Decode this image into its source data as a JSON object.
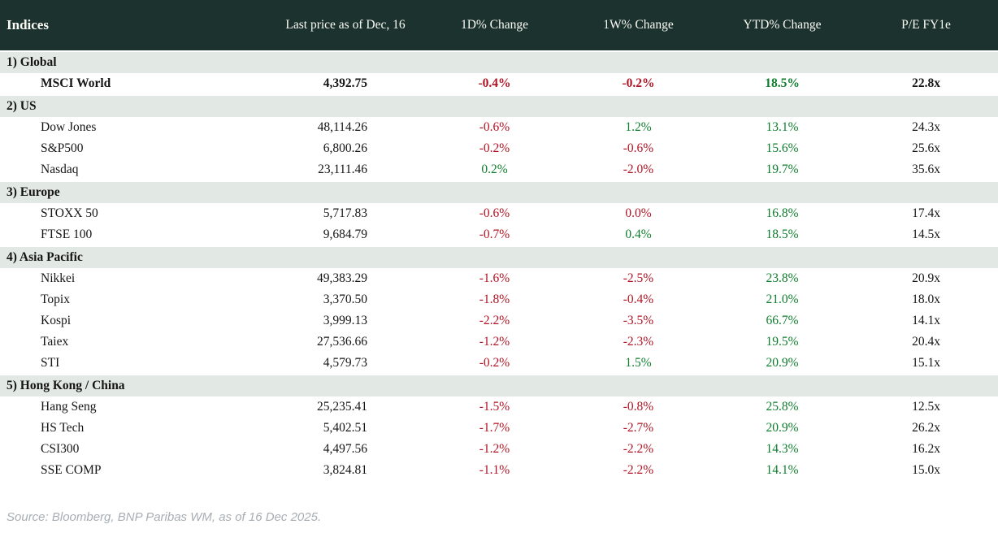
{
  "theme": {
    "header_bg": "#1b322e",
    "header_text": "#fbfaf4",
    "section_bg": "#e2e8e4",
    "row_bg": "#ffffff",
    "text_color": "#151515",
    "negative_color": "#b01323",
    "positive_color": "#0e7d2d",
    "footer_text": "#a7aeb3"
  },
  "table": {
    "title": "Indices",
    "col_headers": [
      "Last price as of Dec, 16",
      "1D% Change",
      "1W% Change",
      "YTD% Change",
      "P/E FY1e"
    ],
    "sections": [
      {
        "label": "1) Global",
        "rows": [
          {
            "name": "MSCI World",
            "price": "4,392.75",
            "d1": "-0.4%",
            "d1s": "neg",
            "w1": "-0.2%",
            "w1s": "neg",
            "ytd": "18.5%",
            "ytds": "pos",
            "pe": "22.8x",
            "bold": true
          }
        ]
      },
      {
        "label": "2) US",
        "rows": [
          {
            "name": "Dow Jones",
            "price": "48,114.26",
            "d1": "-0.6%",
            "d1s": "neg",
            "w1": "1.2%",
            "w1s": "pos",
            "ytd": "13.1%",
            "ytds": "pos",
            "pe": "24.3x",
            "bold": false
          },
          {
            "name": "S&P500",
            "price": "6,800.26",
            "d1": "-0.2%",
            "d1s": "neg",
            "w1": "-0.6%",
            "w1s": "neg",
            "ytd": "15.6%",
            "ytds": "pos",
            "pe": "25.6x",
            "bold": false
          },
          {
            "name": "Nasdaq",
            "price": "23,111.46",
            "d1": "0.2%",
            "d1s": "pos",
            "w1": "-2.0%",
            "w1s": "neg",
            "ytd": "19.7%",
            "ytds": "pos",
            "pe": "35.6x",
            "bold": false
          }
        ]
      },
      {
        "label": "3) Europe",
        "rows": [
          {
            "name": "STOXX 50",
            "price": "5,717.83",
            "d1": "-0.6%",
            "d1s": "neg",
            "w1": "0.0%",
            "w1s": "neg",
            "ytd": "16.8%",
            "ytds": "pos",
            "pe": "17.4x",
            "bold": false
          },
          {
            "name": "FTSE 100",
            "price": "9,684.79",
            "d1": "-0.7%",
            "d1s": "neg",
            "w1": "0.4%",
            "w1s": "pos",
            "ytd": "18.5%",
            "ytds": "pos",
            "pe": "14.5x",
            "bold": false
          }
        ]
      },
      {
        "label": "4) Asia Pacific",
        "rows": [
          {
            "name": "Nikkei",
            "price": "49,383.29",
            "d1": "-1.6%",
            "d1s": "neg",
            "w1": "-2.5%",
            "w1s": "neg",
            "ytd": "23.8%",
            "ytds": "pos",
            "pe": "20.9x",
            "bold": false
          },
          {
            "name": "Topix",
            "price": "3,370.50",
            "d1": "-1.8%",
            "d1s": "neg",
            "w1": "-0.4%",
            "w1s": "neg",
            "ytd": "21.0%",
            "ytds": "pos",
            "pe": "18.0x",
            "bold": false
          },
          {
            "name": "Kospi",
            "price": "3,999.13",
            "d1": "-2.2%",
            "d1s": "neg",
            "w1": "-3.5%",
            "w1s": "neg",
            "ytd": "66.7%",
            "ytds": "pos",
            "pe": "14.1x",
            "bold": false
          },
          {
            "name": "Taiex",
            "price": "27,536.66",
            "d1": "-1.2%",
            "d1s": "neg",
            "w1": "-2.3%",
            "w1s": "neg",
            "ytd": "19.5%",
            "ytds": "pos",
            "pe": "20.4x",
            "bold": false
          },
          {
            "name": "STI",
            "price": "4,579.73",
            "d1": "-0.2%",
            "d1s": "neg",
            "w1": "1.5%",
            "w1s": "pos",
            "ytd": "20.9%",
            "ytds": "pos",
            "pe": "15.1x",
            "bold": false
          }
        ]
      },
      {
        "label": "5) Hong Kong / China",
        "rows": [
          {
            "name": "Hang Seng",
            "price": "25,235.41",
            "d1": "-1.5%",
            "d1s": "neg",
            "w1": "-0.8%",
            "w1s": "neg",
            "ytd": "25.8%",
            "ytds": "pos",
            "pe": "12.5x",
            "bold": false
          },
          {
            "name": "HS Tech",
            "price": "5,402.51",
            "d1": "-1.7%",
            "d1s": "neg",
            "w1": "-2.7%",
            "w1s": "neg",
            "ytd": "20.9%",
            "ytds": "pos",
            "pe": "26.2x",
            "bold": false
          },
          {
            "name": "CSI300",
            "price": "4,497.56",
            "d1": "-1.2%",
            "d1s": "neg",
            "w1": "-2.2%",
            "w1s": "neg",
            "ytd": "14.3%",
            "ytds": "pos",
            "pe": "16.2x",
            "bold": false
          },
          {
            "name": "SSE COMP",
            "price": "3,824.81",
            "d1": "-1.1%",
            "d1s": "neg",
            "w1": "-2.2%",
            "w1s": "neg",
            "ytd": "14.1%",
            "ytds": "pos",
            "pe": "15.0x",
            "bold": false
          }
        ]
      }
    ]
  },
  "footer": {
    "source": "Source: Bloomberg, BNP Paribas WM, as of 16 Dec 2025."
  }
}
